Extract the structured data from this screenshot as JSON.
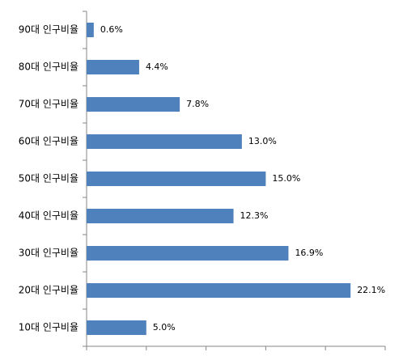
{
  "chart_data": {
    "type": "bar",
    "orientation": "horizontal",
    "categories": [
      "90대 인구비율",
      "80대 인구비율",
      "70대 인구비율",
      "60대 인구비율",
      "50대 인구비율",
      "40대 인구비율",
      "30대 인구비율",
      "20대 인구비율",
      "10대 인구비율"
    ],
    "values": [
      0.6,
      4.4,
      7.8,
      13.0,
      15.0,
      12.3,
      16.9,
      22.1,
      5.0
    ],
    "value_labels": [
      "0.6%",
      "4.4%",
      "7.8%",
      "13.0%",
      "15.0%",
      "12.3%",
      "16.9%",
      "22.1%",
      "5.0%"
    ],
    "color": "#4f81bd",
    "xlim": [
      0,
      25
    ],
    "xticks": [
      0,
      5,
      10,
      15,
      20,
      25
    ]
  }
}
